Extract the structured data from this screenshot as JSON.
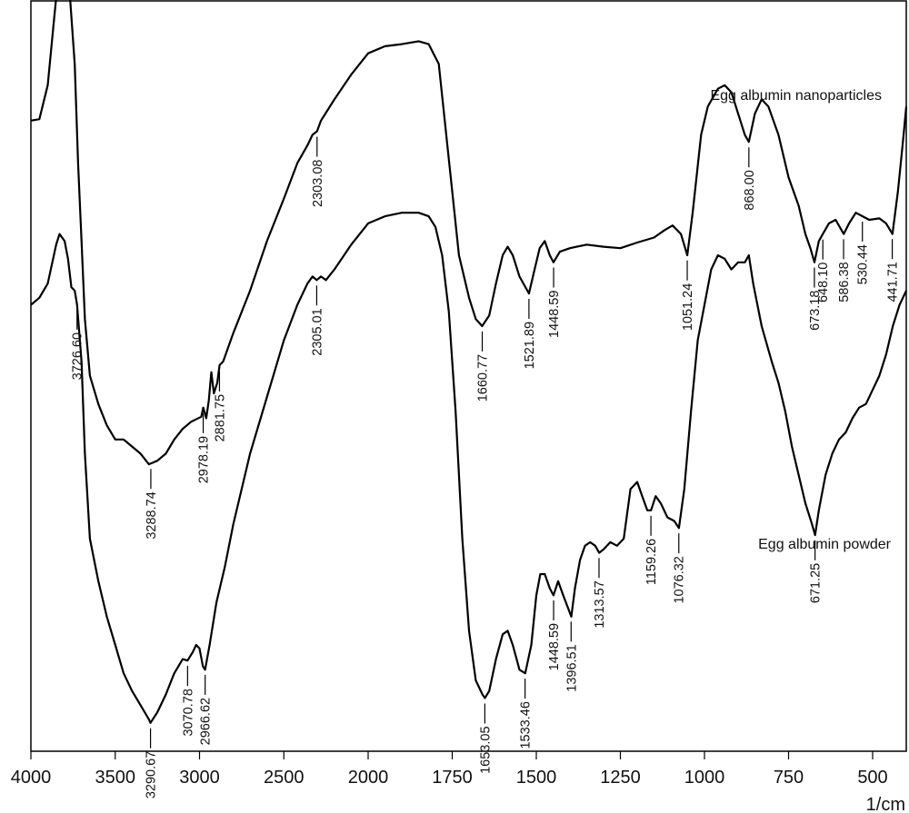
{
  "chart_data": {
    "type": "line",
    "xlabel": "1/cm",
    "xlim": [
      4000,
      400
    ],
    "xaxis_reversed": true,
    "y_axis_ticks": "none",
    "grid": false,
    "legend": "none",
    "xticks": [
      4000,
      3500,
      3000,
      2500,
      2000,
      1750,
      1500,
      1250,
      1000,
      750,
      500
    ],
    "xtick_labels": [
      "4000",
      "3500",
      "3000",
      "2500",
      "2000",
      "1750",
      "1500",
      "1250",
      "1000",
      "750",
      "500"
    ],
    "series": [
      {
        "name": "Egg albumin nanoparticles",
        "color": "#000000",
        "points": [
          [
            4000,
            0.89
          ],
          [
            3950,
            0.892
          ],
          [
            3900,
            0.94
          ],
          [
            3860,
            1.04
          ],
          [
            3830,
            1.11
          ],
          [
            3800,
            1.1
          ],
          [
            3770,
            1.07
          ],
          [
            3740,
            0.97
          ],
          [
            3720,
            0.83
          ],
          [
            3700,
            0.72
          ],
          [
            3680,
            0.61
          ],
          [
            3650,
            0.53
          ],
          [
            3600,
            0.49
          ],
          [
            3550,
            0.46
          ],
          [
            3500,
            0.44
          ],
          [
            3450,
            0.44
          ],
          [
            3400,
            0.43
          ],
          [
            3350,
            0.42
          ],
          [
            3300,
            0.405
          ],
          [
            3250,
            0.41
          ],
          [
            3200,
            0.42
          ],
          [
            3150,
            0.44
          ],
          [
            3100,
            0.455
          ],
          [
            3050,
            0.465
          ],
          [
            2990,
            0.472
          ],
          [
            2978,
            0.485
          ],
          [
            2960,
            0.47
          ],
          [
            2945,
            0.495
          ],
          [
            2930,
            0.535
          ],
          [
            2915,
            0.505
          ],
          [
            2895,
            0.52
          ],
          [
            2881,
            0.545
          ],
          [
            2860,
            0.55
          ],
          [
            2800,
            0.59
          ],
          [
            2700,
            0.65
          ],
          [
            2600,
            0.72
          ],
          [
            2500,
            0.78
          ],
          [
            2420,
            0.83
          ],
          [
            2360,
            0.855
          ],
          [
            2330,
            0.87
          ],
          [
            2303,
            0.875
          ],
          [
            2280,
            0.89
          ],
          [
            2200,
            0.92
          ],
          [
            2100,
            0.955
          ],
          [
            2000,
            0.985
          ],
          [
            1950,
            0.995
          ],
          [
            1900,
            0.998
          ],
          [
            1850,
            1.002
          ],
          [
            1820,
            0.998
          ],
          [
            1790,
            0.97
          ],
          [
            1770,
            0.88
          ],
          [
            1750,
            0.79
          ],
          [
            1730,
            0.7
          ],
          [
            1700,
            0.64
          ],
          [
            1680,
            0.61
          ],
          [
            1661,
            0.6
          ],
          [
            1640,
            0.615
          ],
          [
            1620,
            0.66
          ],
          [
            1600,
            0.7
          ],
          [
            1585,
            0.712
          ],
          [
            1570,
            0.7
          ],
          [
            1550,
            0.67
          ],
          [
            1522,
            0.646
          ],
          [
            1505,
            0.68
          ],
          [
            1490,
            0.71
          ],
          [
            1475,
            0.72
          ],
          [
            1460,
            0.7
          ],
          [
            1449,
            0.69
          ],
          [
            1430,
            0.705
          ],
          [
            1400,
            0.71
          ],
          [
            1350,
            0.715
          ],
          [
            1300,
            0.712
          ],
          [
            1250,
            0.71
          ],
          [
            1200,
            0.718
          ],
          [
            1150,
            0.725
          ],
          [
            1120,
            0.735
          ],
          [
            1095,
            0.742
          ],
          [
            1070,
            0.73
          ],
          [
            1051,
            0.7
          ],
          [
            1035,
            0.76
          ],
          [
            1010,
            0.87
          ],
          [
            990,
            0.91
          ],
          [
            960,
            0.935
          ],
          [
            940,
            0.94
          ],
          [
            920,
            0.93
          ],
          [
            900,
            0.9
          ],
          [
            880,
            0.87
          ],
          [
            868,
            0.86
          ],
          [
            850,
            0.9
          ],
          [
            830,
            0.92
          ],
          [
            810,
            0.91
          ],
          [
            780,
            0.87
          ],
          [
            750,
            0.81
          ],
          [
            720,
            0.77
          ],
          [
            700,
            0.73
          ],
          [
            685,
            0.71
          ],
          [
            673,
            0.69
          ],
          [
            660,
            0.72
          ],
          [
            648,
            0.73
          ],
          [
            630,
            0.745
          ],
          [
            610,
            0.75
          ],
          [
            586,
            0.73
          ],
          [
            570,
            0.745
          ],
          [
            550,
            0.76
          ],
          [
            530,
            0.755
          ],
          [
            510,
            0.75
          ],
          [
            480,
            0.752
          ],
          [
            460,
            0.745
          ],
          [
            441,
            0.73
          ],
          [
            425,
            0.79
          ],
          [
            410,
            0.86
          ],
          [
            400,
            0.91
          ]
        ],
        "peak_labels": [
          "3288.74",
          "2978.19",
          "2881.75",
          "2303.08",
          "1660.77",
          "1521.89",
          "1448.59",
          "1051.24",
          "868.00",
          "673.18",
          "648.10",
          "586.38",
          "530.44",
          "441.71"
        ]
      },
      {
        "name": "Egg albumin powder",
        "color": "#000000",
        "points": [
          [
            4000,
            0.63
          ],
          [
            3950,
            0.64
          ],
          [
            3900,
            0.66
          ],
          [
            3850,
            0.715
          ],
          [
            3830,
            0.73
          ],
          [
            3800,
            0.72
          ],
          [
            3780,
            0.695
          ],
          [
            3760,
            0.655
          ],
          [
            3740,
            0.65
          ],
          [
            3726,
            0.63
          ],
          [
            3700,
            0.55
          ],
          [
            3680,
            0.42
          ],
          [
            3650,
            0.3
          ],
          [
            3600,
            0.24
          ],
          [
            3550,
            0.19
          ],
          [
            3500,
            0.15
          ],
          [
            3450,
            0.11
          ],
          [
            3400,
            0.085
          ],
          [
            3350,
            0.065
          ],
          [
            3300,
            0.045
          ],
          [
            3291,
            0.04
          ],
          [
            3250,
            0.055
          ],
          [
            3200,
            0.08
          ],
          [
            3150,
            0.11
          ],
          [
            3100,
            0.13
          ],
          [
            3071,
            0.128
          ],
          [
            3040,
            0.14
          ],
          [
            3020,
            0.15
          ],
          [
            3000,
            0.145
          ],
          [
            2980,
            0.12
          ],
          [
            2967,
            0.115
          ],
          [
            2940,
            0.15
          ],
          [
            2900,
            0.21
          ],
          [
            2850,
            0.26
          ],
          [
            2800,
            0.32
          ],
          [
            2700,
            0.42
          ],
          [
            2600,
            0.5
          ],
          [
            2500,
            0.58
          ],
          [
            2420,
            0.63
          ],
          [
            2360,
            0.66
          ],
          [
            2330,
            0.67
          ],
          [
            2305,
            0.665
          ],
          [
            2280,
            0.67
          ],
          [
            2250,
            0.665
          ],
          [
            2200,
            0.68
          ],
          [
            2100,
            0.715
          ],
          [
            2000,
            0.745
          ],
          [
            1950,
            0.755
          ],
          [
            1900,
            0.76
          ],
          [
            1850,
            0.76
          ],
          [
            1820,
            0.755
          ],
          [
            1800,
            0.74
          ],
          [
            1780,
            0.7
          ],
          [
            1760,
            0.62
          ],
          [
            1740,
            0.48
          ],
          [
            1720,
            0.3
          ],
          [
            1700,
            0.17
          ],
          [
            1680,
            0.1
          ],
          [
            1660,
            0.08
          ],
          [
            1653,
            0.075
          ],
          [
            1640,
            0.085
          ],
          [
            1620,
            0.13
          ],
          [
            1600,
            0.165
          ],
          [
            1585,
            0.17
          ],
          [
            1570,
            0.15
          ],
          [
            1550,
            0.115
          ],
          [
            1533,
            0.11
          ],
          [
            1515,
            0.15
          ],
          [
            1500,
            0.22
          ],
          [
            1488,
            0.25
          ],
          [
            1475,
            0.25
          ],
          [
            1460,
            0.23
          ],
          [
            1449,
            0.22
          ],
          [
            1435,
            0.24
          ],
          [
            1420,
            0.22
          ],
          [
            1400,
            0.195
          ],
          [
            1396,
            0.19
          ],
          [
            1385,
            0.23
          ],
          [
            1370,
            0.27
          ],
          [
            1355,
            0.29
          ],
          [
            1340,
            0.295
          ],
          [
            1325,
            0.29
          ],
          [
            1313,
            0.28
          ],
          [
            1300,
            0.285
          ],
          [
            1280,
            0.295
          ],
          [
            1260,
            0.29
          ],
          [
            1240,
            0.3
          ],
          [
            1220,
            0.37
          ],
          [
            1200,
            0.38
          ],
          [
            1185,
            0.36
          ],
          [
            1170,
            0.34
          ],
          [
            1159,
            0.34
          ],
          [
            1145,
            0.36
          ],
          [
            1130,
            0.35
          ],
          [
            1110,
            0.33
          ],
          [
            1090,
            0.325
          ],
          [
            1076,
            0.315
          ],
          [
            1060,
            0.37
          ],
          [
            1040,
            0.48
          ],
          [
            1020,
            0.58
          ],
          [
            1000,
            0.63
          ],
          [
            980,
            0.68
          ],
          [
            960,
            0.7
          ],
          [
            940,
            0.695
          ],
          [
            920,
            0.68
          ],
          [
            900,
            0.69
          ],
          [
            880,
            0.69
          ],
          [
            868,
            0.7
          ],
          [
            855,
            0.66
          ],
          [
            830,
            0.6
          ],
          [
            800,
            0.55
          ],
          [
            780,
            0.52
          ],
          [
            760,
            0.48
          ],
          [
            740,
            0.43
          ],
          [
            720,
            0.39
          ],
          [
            700,
            0.35
          ],
          [
            680,
            0.32
          ],
          [
            671,
            0.305
          ],
          [
            660,
            0.34
          ],
          [
            640,
            0.39
          ],
          [
            620,
            0.42
          ],
          [
            600,
            0.44
          ],
          [
            580,
            0.45
          ],
          [
            560,
            0.47
          ],
          [
            540,
            0.485
          ],
          [
            520,
            0.49
          ],
          [
            500,
            0.51
          ],
          [
            480,
            0.53
          ],
          [
            460,
            0.56
          ],
          [
            440,
            0.6
          ],
          [
            420,
            0.63
          ],
          [
            400,
            0.65
          ]
        ],
        "peak_labels": [
          "3726.60",
          "3290.67",
          "3070.78",
          "2966.62",
          "2305.01",
          "1653.05",
          "1533.46",
          "1448.59",
          "1396.51",
          "1313.57",
          "1159.26",
          "1076.32",
          "671.25"
        ]
      }
    ]
  }
}
